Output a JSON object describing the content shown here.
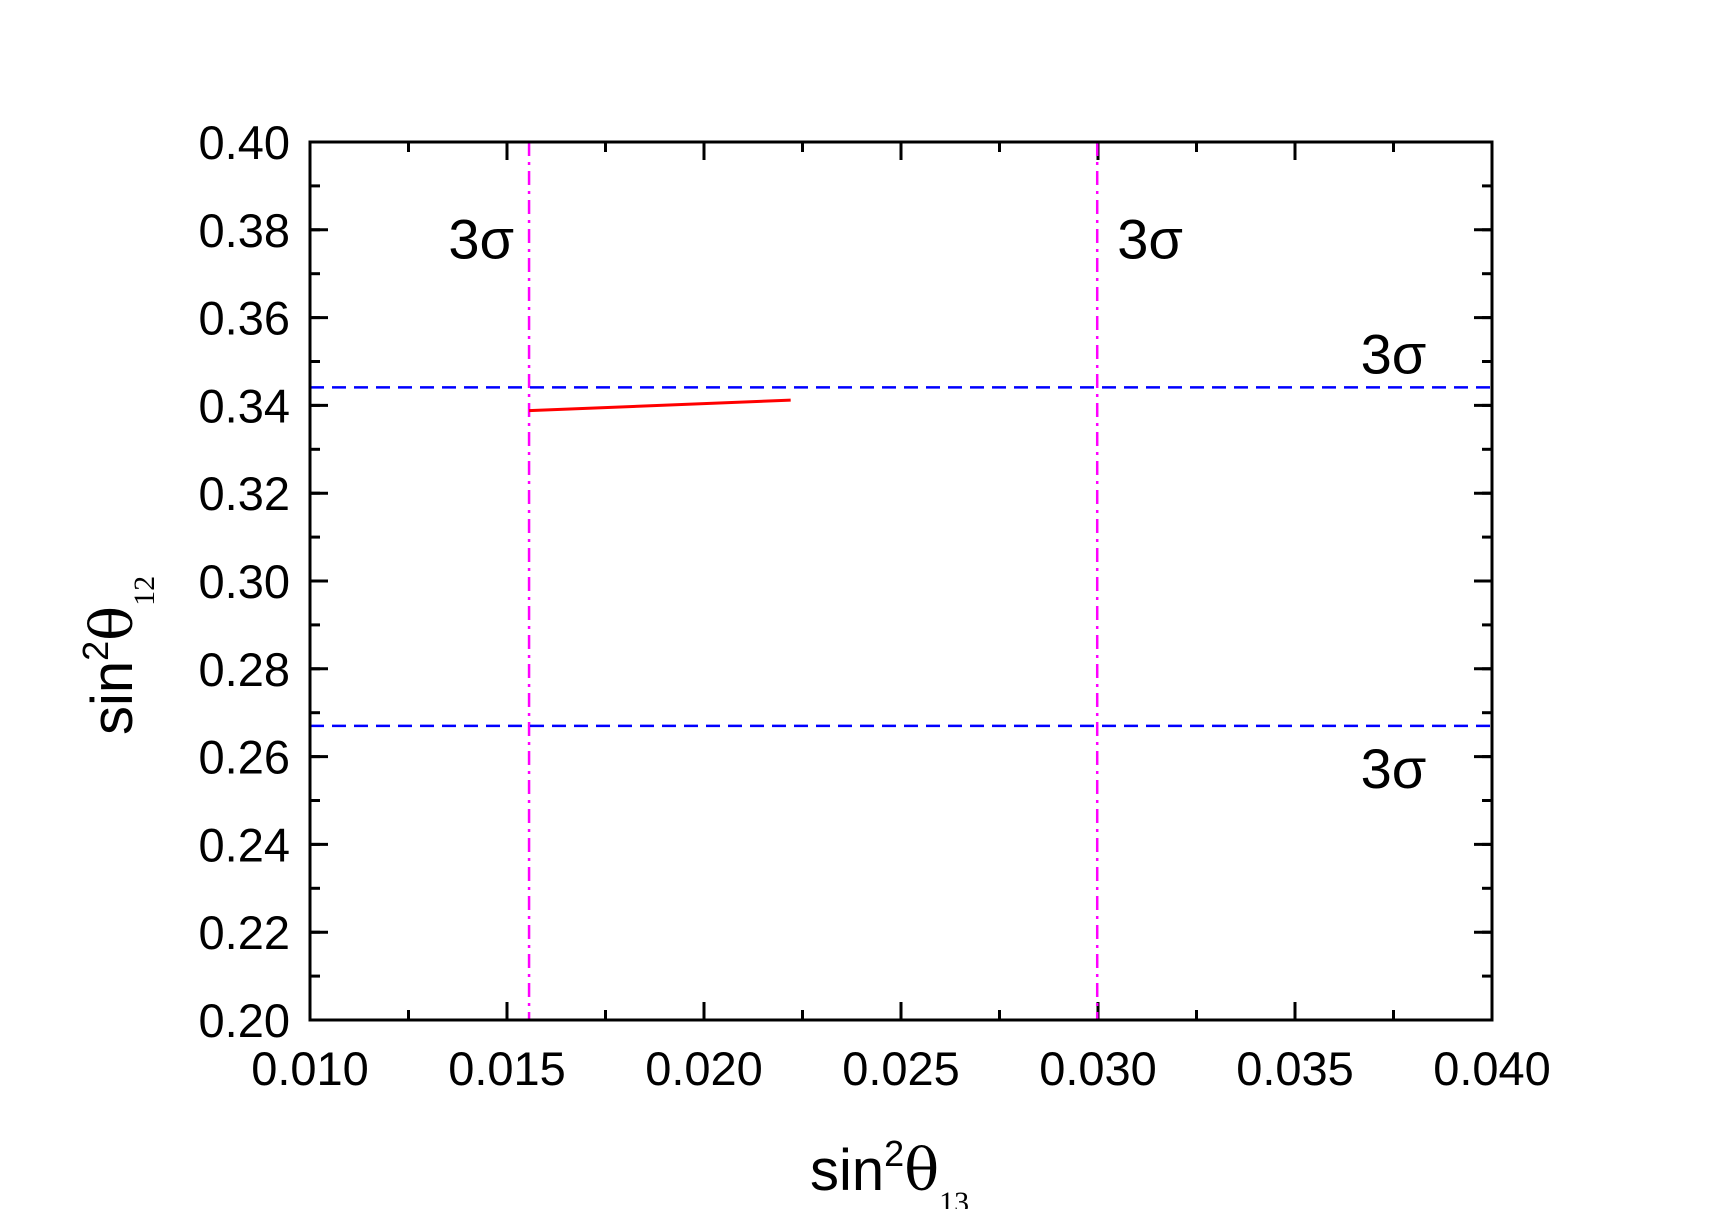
{
  "chart_data": {
    "type": "line",
    "x_axis": {
      "label_base": "sin",
      "label_exponent": "2",
      "label_symbol": "θ",
      "label_subscript": "13",
      "xlim": [
        0.01,
        0.04
      ],
      "major_ticks": [
        "0.010",
        "0.015",
        "0.020",
        "0.025",
        "0.030",
        "0.035",
        "0.040"
      ],
      "minor_step": 0.0025
    },
    "y_axis": {
      "label_base": "sin",
      "label_exponent": "2",
      "label_symbol": "θ",
      "label_subscript": "12",
      "ylim": [
        0.2,
        0.4
      ],
      "major_ticks": [
        "0.20",
        "0.22",
        "0.24",
        "0.26",
        "0.28",
        "0.30",
        "0.32",
        "0.34",
        "0.36",
        "0.38",
        "0.40"
      ],
      "minor_step": 0.01
    },
    "grid": false,
    "series": [
      {
        "color": "#ff0000",
        "x": [
          0.01556,
          0.0222
        ],
        "y": [
          0.3388,
          0.3412
        ]
      }
    ],
    "reference_lines": [
      {
        "orientation": "vertical",
        "value": 0.01556,
        "color": "#ff00ff",
        "style": "dash-dot",
        "label": "3σ"
      },
      {
        "orientation": "vertical",
        "value": 0.02998,
        "color": "#ff00ff",
        "style": "dash-dot",
        "label": "3σ"
      },
      {
        "orientation": "horizontal",
        "value": 0.3441,
        "color": "#0000ff",
        "style": "dashed",
        "label": "3σ"
      },
      {
        "orientation": "horizontal",
        "value": 0.267,
        "color": "#0000ff",
        "style": "dashed",
        "label": "3σ"
      }
    ]
  }
}
